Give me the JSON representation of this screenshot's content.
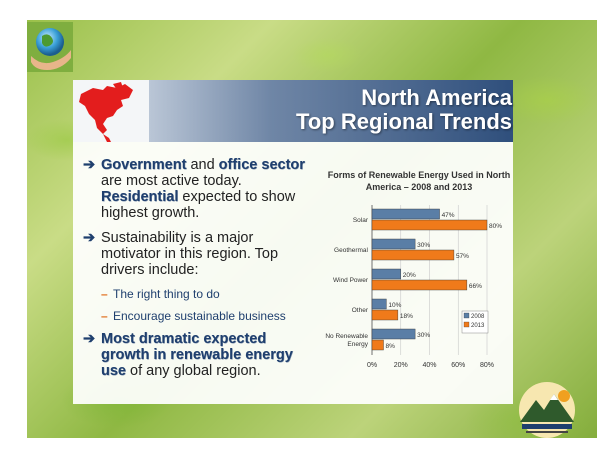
{
  "slide": {
    "title_line1": "North America",
    "title_line2": "Top Regional Trends"
  },
  "bullets": {
    "b1": {
      "government": "Government",
      "and": " and ",
      "office": "office",
      "sector": "sector",
      "rest1": " are most active today. ",
      "residential": "Residential",
      "rest2": " expected to show highest growth."
    },
    "b2": "Sustainability is a major motivator in this region. Top drivers include:",
    "sub1": "The right thing to do",
    "sub2": "Encourage sustainable business",
    "b3": {
      "bold": "Most dramatic expected growth in renewable energy use",
      "rest": " of any global region."
    }
  },
  "logo_text": "",
  "chart_data": {
    "type": "bar",
    "orientation": "horizontal",
    "title": "Forms of Renewable Energy Used in North America – 2008 and 2013",
    "categories": [
      "Solar",
      "Geothermal",
      "Wind Power",
      "Other",
      "No Renewable Energy"
    ],
    "series": [
      {
        "name": "2008",
        "values": [
          47,
          30,
          20,
          10,
          30
        ],
        "labels": [
          "47%",
          "30%",
          "20%",
          "10%",
          "30%"
        ],
        "color": "#5a7ea6"
      },
      {
        "name": "2013",
        "values": [
          80,
          57,
          66,
          18,
          8
        ],
        "labels": [
          "80%",
          "57%",
          "66%",
          "18%",
          "8%"
        ],
        "color": "#f07a1a"
      }
    ],
    "xlim": [
      0,
      80
    ],
    "xticks": [
      "0%",
      "20%",
      "40%",
      "60%",
      "80%"
    ],
    "legend": "bottom-right",
    "grid": true
  },
  "colors": {
    "accent_blue": "#1f3f6e",
    "accent_orange": "#e07020"
  }
}
